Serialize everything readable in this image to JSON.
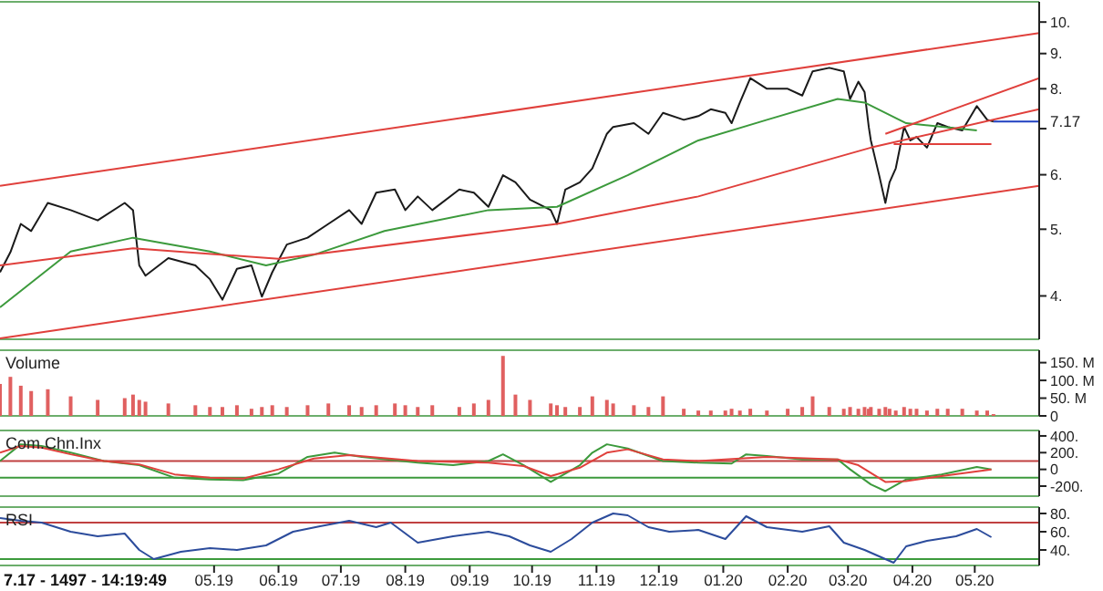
{
  "chart_data": [
    {
      "type": "line",
      "log": "y",
      "xlim": [
        "2019-01-18",
        "2020-06-01"
      ],
      "ylim": [
        3.46,
        10.7
      ],
      "yticks": [
        {
          "value": 4,
          "label": "4."
        },
        {
          "value": 5,
          "label": "5."
        },
        {
          "value": 6,
          "label": "6."
        },
        {
          "value": 7,
          "label": null
        },
        {
          "value": 8,
          "label": "8."
        },
        {
          "value": 9,
          "label": "9."
        },
        {
          "value": 10,
          "label": "10."
        }
      ],
      "tick_labels": "y",
      "grid": false,
      "ref_lines": [
        {
          "axis": "y",
          "value": 7.17,
          "label": "7.17",
          "color": "#2040c0"
        }
      ],
      "series": [
        {
          "color": "#1a1a1a",
          "x": [
            "2019-01-18",
            "2019-01-23",
            "2019-01-28",
            "2019-02-02",
            "2019-02-10",
            "2019-02-21",
            "2019-03-06",
            "2019-03-19",
            "2019-03-23",
            "2019-03-26",
            "2019-03-29",
            "2019-04-09",
            "2019-04-22",
            "2019-04-29",
            "2019-05-05",
            "2019-05-12",
            "2019-05-19",
            "2019-05-24",
            "2019-05-29",
            "2019-06-05",
            "2019-06-15",
            "2019-06-25",
            "2019-07-05",
            "2019-07-11",
            "2019-07-18",
            "2019-07-27",
            "2019-08-01",
            "2019-08-07",
            "2019-08-14",
            "2019-08-27",
            "2019-09-03",
            "2019-09-10",
            "2019-09-17",
            "2019-09-23",
            "2019-09-30",
            "2019-10-10",
            "2019-10-13",
            "2019-10-17",
            "2019-10-24",
            "2019-10-30",
            "2019-11-06",
            "2019-11-09",
            "2019-11-19",
            "2019-11-26",
            "2019-12-03",
            "2019-12-13",
            "2019-12-20",
            "2019-12-26",
            "2020-01-02",
            "2020-01-05",
            "2020-01-09",
            "2020-01-14",
            "2020-01-22",
            "2020-02-01",
            "2020-02-08",
            "2020-02-13",
            "2020-02-21",
            "2020-02-28",
            "2020-03-02",
            "2020-03-06",
            "2020-03-09",
            "2020-03-11",
            "2020-03-12",
            "2020-03-16",
            "2020-03-19",
            "2020-03-21",
            "2020-03-24",
            "2020-03-28",
            "2020-03-31",
            "2020-04-03",
            "2020-04-08",
            "2020-04-13",
            "2020-04-18",
            "2020-04-25",
            "2020-05-02",
            "2020-05-07",
            "2020-05-10"
          ],
          "values": [
            4.33,
            4.63,
            5.09,
            4.97,
            5.46,
            5.33,
            5.15,
            5.46,
            5.33,
            4.43,
            4.28,
            4.54,
            4.43,
            4.23,
            3.95,
            4.38,
            4.43,
            3.99,
            4.33,
            4.75,
            4.86,
            5.09,
            5.33,
            5.09,
            5.65,
            5.71,
            5.33,
            5.58,
            5.33,
            5.71,
            5.65,
            5.39,
            5.99,
            5.85,
            5.52,
            5.33,
            5.09,
            5.71,
            5.85,
            6.13,
            6.88,
            7.04,
            7.13,
            6.88,
            7.38,
            7.21,
            7.3,
            7.47,
            7.38,
            7.13,
            7.64,
            8.29,
            8.0,
            8.0,
            7.82,
            8.48,
            8.58,
            8.48,
            7.73,
            8.19,
            7.91,
            7.04,
            6.73,
            5.99,
            5.46,
            5.85,
            6.13,
            7.04,
            6.73,
            6.81,
            6.57,
            7.13,
            7.04,
            6.96,
            7.55,
            7.21,
            7.17
          ]
        },
        {
          "color": "#3c9a3c",
          "x": [
            "2019-01-18",
            "2019-02-21",
            "2019-03-23",
            "2019-04-29",
            "2019-05-26",
            "2019-06-18",
            "2019-07-22",
            "2019-09-10",
            "2019-10-13",
            "2019-11-16",
            "2019-12-20",
            "2020-01-22",
            "2020-02-25",
            "2020-03-09",
            "2020-03-29",
            "2020-05-02"
          ],
          "values": [
            3.85,
            4.64,
            4.86,
            4.64,
            4.43,
            4.59,
            4.97,
            5.33,
            5.39,
            5.99,
            6.73,
            7.21,
            7.73,
            7.64,
            7.13,
            6.96
          ]
        },
        {
          "color": "#e0403c",
          "x": [
            "2019-01-18",
            "2019-03-23",
            "2019-06-01",
            "2019-10-13",
            "2019-12-20",
            "2020-03-12",
            "2020-06-01"
          ],
          "values": [
            4.43,
            4.69,
            4.53,
            5.09,
            5.58,
            6.57,
            7.47
          ]
        },
        {
          "color": "#e0403c",
          "x": [
            "2019-01-18",
            "2020-06-01"
          ],
          "values": [
            5.78,
            9.64
          ]
        },
        {
          "color": "#e0403c",
          "x": [
            "2019-01-18",
            "2020-06-01"
          ],
          "values": [
            3.47,
            5.78
          ]
        },
        {
          "color": "#e0403c",
          "x": [
            "2020-03-19",
            "2020-06-01"
          ],
          "values": [
            6.88,
            8.29
          ]
        },
        {
          "color": "#e0403c",
          "x": [
            "2020-03-23",
            "2020-05-09"
          ],
          "values": [
            6.65,
            6.65
          ]
        }
      ]
    },
    {
      "type": "bar",
      "title": "Volume",
      "xlim": [
        "2019-01-18",
        "2020-06-01"
      ],
      "ylim": [
        0,
        185
      ],
      "yticks": [
        0,
        {
          "value": 50,
          "label": "50. M"
        },
        {
          "value": 100,
          "label": "100. M"
        },
        {
          "value": 150,
          "label": "150. M"
        }
      ],
      "tick_labels": "y",
      "color": "#e06060",
      "x": [
        "2019-01-18",
        "2019-01-23",
        "2019-01-28",
        "2019-02-02",
        "2019-02-10",
        "2019-02-21",
        "2019-03-06",
        "2019-03-19",
        "2019-03-23",
        "2019-03-26",
        "2019-03-29",
        "2019-04-09",
        "2019-04-22",
        "2019-04-29",
        "2019-05-05",
        "2019-05-12",
        "2019-05-19",
        "2019-05-24",
        "2019-05-29",
        "2019-06-05",
        "2019-06-15",
        "2019-06-25",
        "2019-07-05",
        "2019-07-11",
        "2019-07-18",
        "2019-07-27",
        "2019-08-01",
        "2019-08-07",
        "2019-08-14",
        "2019-08-27",
        "2019-09-03",
        "2019-09-10",
        "2019-09-17",
        "2019-09-23",
        "2019-09-30",
        "2019-10-10",
        "2019-10-13",
        "2019-10-17",
        "2019-10-24",
        "2019-10-30",
        "2019-11-06",
        "2019-11-09",
        "2019-11-19",
        "2019-11-26",
        "2019-12-03",
        "2019-12-13",
        "2019-12-20",
        "2019-12-26",
        "2020-01-02",
        "2020-01-05",
        "2020-01-09",
        "2020-01-14",
        "2020-01-22",
        "2020-02-01",
        "2020-02-08",
        "2020-02-13",
        "2020-02-21",
        "2020-02-28",
        "2020-03-02",
        "2020-03-06",
        "2020-03-09",
        "2020-03-11",
        "2020-03-12",
        "2020-03-16",
        "2020-03-19",
        "2020-03-21",
        "2020-03-24",
        "2020-03-28",
        "2020-03-31",
        "2020-04-03",
        "2020-04-08",
        "2020-04-13",
        "2020-04-18",
        "2020-04-25",
        "2020-05-02",
        "2020-05-07",
        "2020-05-10"
      ],
      "values": [
        90,
        110,
        85,
        70,
        75,
        55,
        45,
        50,
        60,
        45,
        40,
        35,
        30,
        25,
        25,
        30,
        20,
        25,
        30,
        25,
        30,
        35,
        30,
        25,
        30,
        35,
        30,
        25,
        30,
        25,
        35,
        45,
        169,
        60,
        45,
        35,
        30,
        25,
        25,
        55,
        45,
        35,
        30,
        25,
        55,
        20,
        15,
        15,
        15,
        20,
        15,
        20,
        15,
        20,
        25,
        55,
        25,
        20,
        25,
        20,
        25,
        20,
        25,
        20,
        25,
        20,
        15,
        25,
        20,
        20,
        15,
        20,
        20,
        20,
        15,
        15,
        5
      ]
    },
    {
      "type": "line",
      "title": "Com.Chn.Inx",
      "xlim": [
        "2019-01-18",
        "2020-06-01"
      ],
      "ylim": [
        -320,
        465
      ],
      "yticks": [
        {
          "value": -200,
          "label": "-200."
        },
        0,
        {
          "value": 200,
          "label": "200."
        },
        {
          "value": 400,
          "label": "400."
        }
      ],
      "tick_labels": "y",
      "ref_lines": [
        {
          "axis": "y",
          "value": 100,
          "color": "#c04040"
        },
        {
          "axis": "y",
          "value": -100,
          "color": "#3c9a3c"
        }
      ],
      "series": [
        {
          "color": "#3c9a3c",
          "x": [
            "2019-01-18",
            "2019-01-28",
            "2019-02-07",
            "2019-02-21",
            "2019-03-09",
            "2019-03-26",
            "2019-04-12",
            "2019-04-29",
            "2019-05-15",
            "2019-06-01",
            "2019-06-15",
            "2019-06-28",
            "2019-07-11",
            "2019-08-07",
            "2019-08-24",
            "2019-09-10",
            "2019-09-17",
            "2019-09-27",
            "2019-10-10",
            "2019-10-24",
            "2019-10-30",
            "2019-11-06",
            "2019-11-16",
            "2019-12-03",
            "2019-12-20",
            "2020-01-05",
            "2020-01-12",
            "2020-01-22",
            "2020-02-08",
            "2020-02-25",
            "2020-03-02",
            "2020-03-12",
            "2020-03-19",
            "2020-03-29",
            "2020-04-15",
            "2020-05-02",
            "2020-05-09"
          ],
          "values": [
            100,
            300,
            280,
            200,
            100,
            50,
            -100,
            -120,
            -130,
            -50,
            150,
            200,
            150,
            80,
            50,
            100,
            180,
            50,
            -150,
            50,
            200,
            300,
            250,
            100,
            80,
            70,
            180,
            160,
            120,
            120,
            0,
            -180,
            -260,
            -120,
            -60,
            30,
            0
          ]
        },
        {
          "color": "#e0403c",
          "x": [
            "2019-01-18",
            "2019-01-28",
            "2019-02-07",
            "2019-02-21",
            "2019-03-09",
            "2019-03-26",
            "2019-04-12",
            "2019-04-29",
            "2019-05-15",
            "2019-06-01",
            "2019-06-18",
            "2019-07-05",
            "2019-08-07",
            "2019-09-10",
            "2019-09-27",
            "2019-10-10",
            "2019-10-24",
            "2019-11-06",
            "2019-11-16",
            "2019-12-03",
            "2019-12-20",
            "2020-01-22",
            "2020-02-25",
            "2020-03-06",
            "2020-03-19",
            "2020-03-29",
            "2020-04-15",
            "2020-05-09"
          ],
          "values": [
            200,
            280,
            260,
            180,
            100,
            60,
            -60,
            -100,
            -110,
            0,
            130,
            170,
            100,
            80,
            40,
            -80,
            20,
            200,
            240,
            120,
            100,
            150,
            120,
            50,
            -150,
            -140,
            -80,
            0
          ]
        }
      ]
    },
    {
      "type": "line",
      "title": "RSI",
      "xlim": [
        "2019-01-18",
        "2020-06-01"
      ],
      "ylim": [
        23,
        87
      ],
      "yticks": [
        {
          "value": 40,
          "label": "40."
        },
        {
          "value": 60,
          "label": "60."
        },
        {
          "value": 80,
          "label": "80."
        }
      ],
      "xticks": [
        {
          "value": "2019-05-01",
          "label": "05.19"
        },
        {
          "value": "2019-06-01",
          "label": "06.19"
        },
        {
          "value": "2019-07-01",
          "label": "07.19"
        },
        {
          "value": "2019-08-01",
          "label": "08.19"
        },
        {
          "value": "2019-09-01",
          "label": "09.19"
        },
        {
          "value": "2019-10-01",
          "label": "10.19"
        },
        {
          "value": "2019-11-01",
          "label": "11.19"
        },
        {
          "value": "2019-12-01",
          "label": "12.19"
        },
        {
          "value": "2020-01-01",
          "label": "01.20"
        },
        {
          "value": "2020-02-01",
          "label": "02.20"
        },
        {
          "value": "2020-03-01",
          "label": "03.20"
        },
        {
          "value": "2020-04-01",
          "label": "04.20"
        },
        {
          "value": "2020-05-01",
          "label": "05.20"
        }
      ],
      "annotations": [
        "7.17 - 1497 - 14:19:49"
      ],
      "ref_lines": [
        {
          "axis": "y",
          "value": 70,
          "color": "#c04040"
        },
        {
          "axis": "y",
          "value": 30,
          "color": "#3c9a3c"
        }
      ],
      "series": [
        {
          "color": "#2c4c9c",
          "x": [
            "2019-01-18",
            "2019-01-28",
            "2019-02-07",
            "2019-02-21",
            "2019-03-06",
            "2019-03-19",
            "2019-03-26",
            "2019-04-02",
            "2019-04-15",
            "2019-04-29",
            "2019-05-12",
            "2019-05-26",
            "2019-06-08",
            "2019-06-21",
            "2019-07-05",
            "2019-07-18",
            "2019-07-25",
            "2019-08-07",
            "2019-08-24",
            "2019-09-10",
            "2019-09-20",
            "2019-09-30",
            "2019-10-10",
            "2019-10-20",
            "2019-10-30",
            "2019-11-09",
            "2019-11-16",
            "2019-11-26",
            "2019-12-06",
            "2019-12-20",
            "2020-01-02",
            "2020-01-12",
            "2020-01-22",
            "2020-02-08",
            "2020-02-21",
            "2020-02-28",
            "2020-03-09",
            "2020-03-19",
            "2020-03-23",
            "2020-03-29",
            "2020-04-08",
            "2020-04-22",
            "2020-05-02",
            "2020-05-09"
          ],
          "values": [
            75,
            72,
            70,
            60,
            55,
            58,
            40,
            30,
            38,
            42,
            40,
            45,
            60,
            66,
            72,
            65,
            70,
            48,
            55,
            60,
            55,
            45,
            38,
            52,
            70,
            80,
            78,
            65,
            60,
            62,
            52,
            77,
            65,
            60,
            66,
            48,
            40,
            30,
            26,
            44,
            50,
            55,
            63,
            54
          ]
        }
      ]
    }
  ]
}
